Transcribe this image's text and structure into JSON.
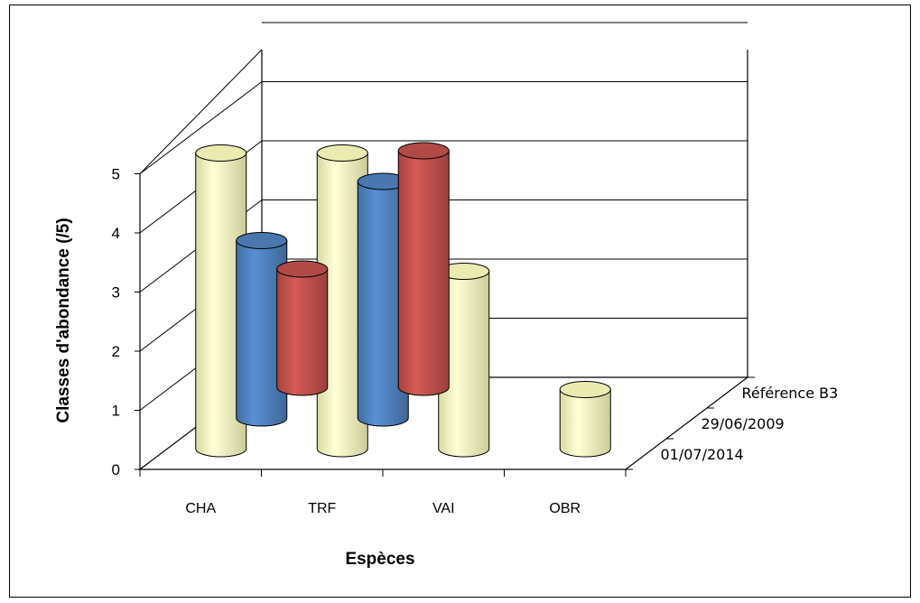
{
  "chart_data": {
    "type": "bar",
    "style": "3d-cylinder",
    "categories": [
      "CHA",
      "TRF",
      "VAI",
      "OBR"
    ],
    "series": [
      {
        "name": "01/07/2014",
        "color": "#c0504d",
        "values": [
          2,
          4,
          0,
          0
        ]
      },
      {
        "name": "29/06/2009",
        "color": "#4f81bd",
        "values": [
          3,
          4,
          0,
          0
        ]
      },
      {
        "name": "Référence B3",
        "color": "#ffffc0",
        "values": [
          5,
          5,
          3,
          1
        ]
      }
    ],
    "xlabel": "Espèces",
    "ylabel": "Classes d'abondance  (/5)",
    "ylim": [
      0,
      5
    ],
    "yticks": [
      "0",
      "1",
      "2",
      "3",
      "4",
      "5"
    ],
    "grid": true,
    "legend": "none"
  }
}
